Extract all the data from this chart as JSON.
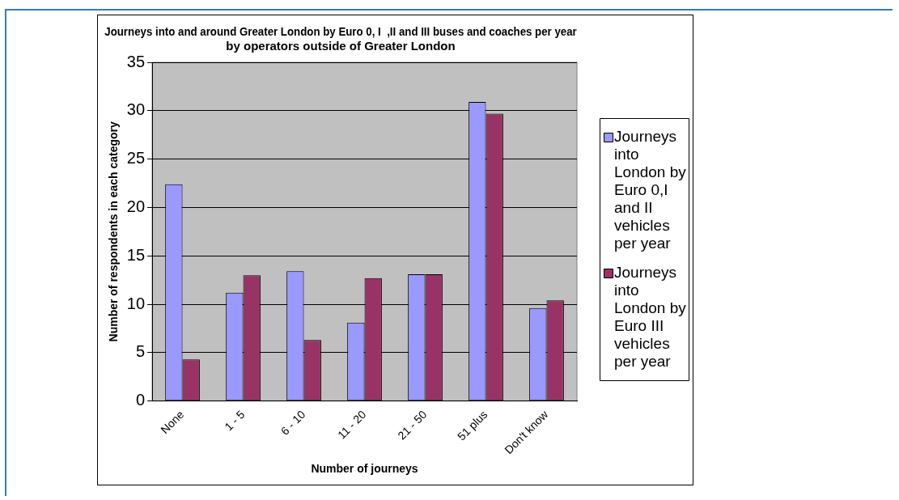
{
  "chart_data": {
    "type": "bar",
    "title": "Journeys into and around Greater London by Euro 0, I  ,II and III buses and coaches per year by operators outside of Greater London",
    "xlabel": "Number of journeys",
    "ylabel": "Number of respondents in each category",
    "categories": [
      "None",
      "1 - 5",
      "6 - 10",
      "11 - 20",
      "21 - 50",
      "51 plus",
      "Don't know"
    ],
    "series": [
      {
        "name": "Journeys into London by Euro 0,I and II vehicles per year",
        "color": "#9999ff",
        "values": [
          22.4,
          11.2,
          13.4,
          8.1,
          13.1,
          30.9,
          9.6
        ]
      },
      {
        "name": "Journeys into London by Euro III vehicles per year",
        "color": "#993366",
        "values": [
          4.3,
          13.0,
          6.3,
          12.7,
          13.1,
          29.7,
          10.4
        ]
      }
    ],
    "ylim": [
      0,
      35
    ],
    "yticks": [
      0,
      5,
      10,
      15,
      20,
      25,
      30,
      35
    ],
    "grid": "y",
    "legend": "right"
  }
}
